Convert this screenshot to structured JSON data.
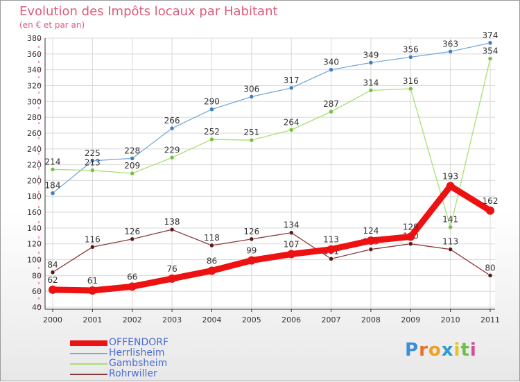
{
  "header": {
    "title": "Evolution des Impôts locaux par Habitant",
    "subtitle": "(en € et par an)"
  },
  "logo": {
    "text": "Proxiti",
    "colors": [
      "#3a8fd8",
      "#e8702a",
      "#f0a020",
      "#2a9ad8",
      "#e8c020",
      "#6cc04a",
      "#d84a9a"
    ]
  },
  "chart_data": {
    "type": "line",
    "title": "Evolution des Impôts locaux par Habitant",
    "subtitle": "(en € et par an)",
    "xlabel": "",
    "ylabel": "",
    "categories": [
      "2000",
      "2001",
      "2002",
      "2003",
      "2004",
      "2005",
      "2006",
      "2007",
      "2008",
      "2009",
      "2010",
      "2011"
    ],
    "ylim": [
      40,
      380
    ],
    "yticks": [
      40,
      60,
      80,
      100,
      120,
      140,
      160,
      180,
      200,
      220,
      240,
      260,
      280,
      300,
      320,
      340,
      360,
      380
    ],
    "grid": true,
    "legend_position": "bottom-left",
    "series": [
      {
        "name": "Herrlisheim",
        "color": "#7aa8d8",
        "marker": "#3f7fc0",
        "values": [
          184,
          225,
          228,
          266,
          290,
          306,
          317,
          340,
          349,
          356,
          363,
          374
        ]
      },
      {
        "name": "Gambsheim",
        "color": "#a8e070",
        "marker": "#78c040",
        "values": [
          214,
          213,
          209,
          229,
          252,
          251,
          264,
          287,
          314,
          316,
          141,
          354
        ]
      },
      {
        "name": "Rohrwiller",
        "color": "#8a3a3a",
        "marker": "#5a1a1a",
        "values": [
          84,
          116,
          126,
          138,
          118,
          126,
          134,
          101,
          113,
          120,
          113,
          80
        ]
      },
      {
        "name": "OFFENDORF",
        "color": "#ee1111",
        "marker": "#ee1111",
        "values": [
          62,
          61,
          66,
          76,
          86,
          99,
          107,
          113,
          124,
          129,
          193,
          162
        ]
      }
    ],
    "legend_order": [
      "OFFENDORF",
      "Herrlisheim",
      "Gambsheim",
      "Rohrwiller"
    ]
  }
}
